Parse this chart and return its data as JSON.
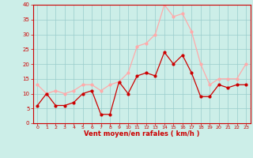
{
  "hours": [
    0,
    1,
    2,
    3,
    4,
    5,
    6,
    7,
    8,
    9,
    10,
    11,
    12,
    13,
    14,
    15,
    16,
    17,
    18,
    19,
    20,
    21,
    22,
    23
  ],
  "wind_avg": [
    6,
    10,
    6,
    6,
    7,
    10,
    11,
    3,
    3,
    14,
    10,
    16,
    17,
    16,
    24,
    20,
    23,
    17,
    9,
    9,
    13,
    12,
    13,
    13
  ],
  "wind_gust": [
    13,
    10,
    11,
    10,
    11,
    13,
    13,
    11,
    13,
    14,
    17,
    26,
    27,
    30,
    40,
    36,
    37,
    31,
    20,
    13,
    15,
    15,
    15,
    20
  ],
  "color_avg": "#cc0000",
  "color_gust": "#ffaaaa",
  "bg_color": "#cceee8",
  "grid_color": "#99cccc",
  "xlabel": "Vent moyen/en rafales ( km/h )",
  "xlabel_color": "#cc0000",
  "ylabel_color": "#cc0000",
  "tick_color": "#cc0000",
  "ylim": [
    0,
    40
  ],
  "yticks": [
    0,
    5,
    10,
    15,
    20,
    25,
    30,
    35,
    40
  ]
}
